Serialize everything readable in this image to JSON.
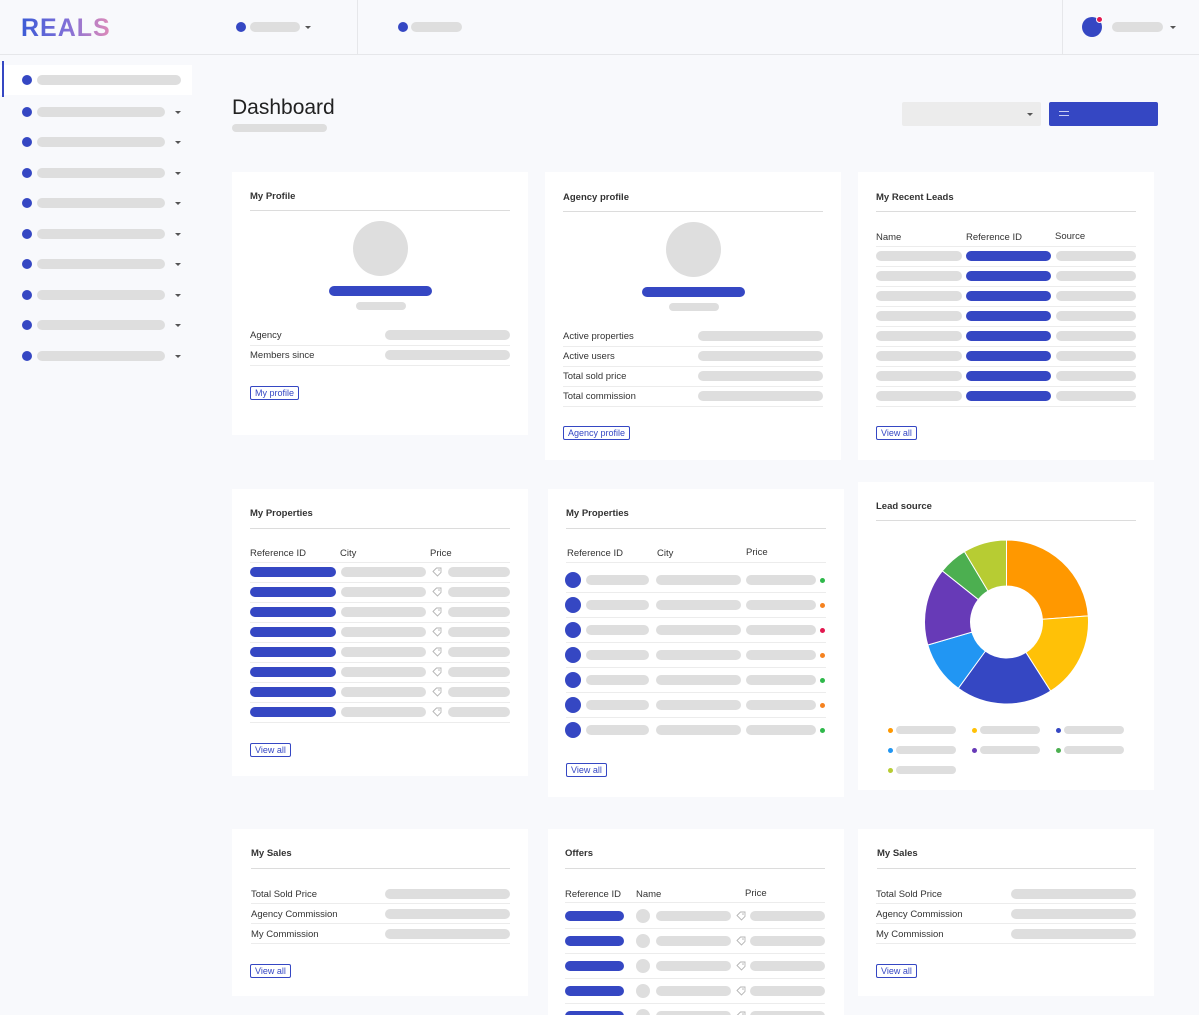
{
  "brand": {
    "logo_text": "REALS"
  },
  "page": {
    "title": "Dashboard"
  },
  "cards": {
    "my_profile": {
      "title": "My Profile",
      "rows": [
        "Agency",
        "Members since"
      ],
      "button": "My profile"
    },
    "agency_profile": {
      "title": "Agency profile",
      "rows": [
        "Active properties",
        "Active users",
        "Total sold price",
        "Total commission"
      ],
      "button": "Agency profile"
    },
    "recent_leads": {
      "title": "My Recent Leads",
      "columns": [
        "Name",
        "Reference ID",
        "Source"
      ],
      "button": "View all"
    },
    "my_properties_1": {
      "title": "My Properties",
      "columns": [
        "Reference ID",
        "City",
        "Price"
      ],
      "button": "View all"
    },
    "my_properties_2": {
      "title": "My Properties",
      "columns": [
        "Reference ID",
        "City",
        "Price"
      ],
      "status_colors": [
        "#2eb84a",
        "#f58220",
        "#e2184f",
        "#f58220",
        "#2eb84a",
        "#f58220",
        "#2eb84a"
      ],
      "button": "View all"
    },
    "lead_source": {
      "title": "Lead source",
      "chart_data": {
        "type": "pie",
        "donut": true,
        "values": [
          25,
          18,
          20,
          11,
          16,
          6,
          9
        ],
        "colors": [
          "#ff9800",
          "#ffc107",
          "#3547c3",
          "#2196f3",
          "#673ab7",
          "#4caf50",
          "#b7cc33"
        ],
        "legend_colors": [
          "#ff9800",
          "#ffc107",
          "#3547c3",
          "#2196f3",
          "#673ab7",
          "#4caf50",
          "#b7cc33"
        ]
      }
    },
    "my_sales_1": {
      "title": "My Sales",
      "rows": [
        "Total Sold Price",
        "Agency Commission",
        "My Commission"
      ],
      "button": "View all"
    },
    "offers": {
      "title": "Offers",
      "columns": [
        "Reference ID",
        "Name",
        "Price"
      ]
    },
    "my_sales_2": {
      "title": "My Sales",
      "rows": [
        "Total Sold Price",
        "Agency Commission",
        "My Commission"
      ],
      "button": "View all"
    }
  },
  "colors": {
    "accent": "#3547c3",
    "placeholder": "#dedede"
  }
}
